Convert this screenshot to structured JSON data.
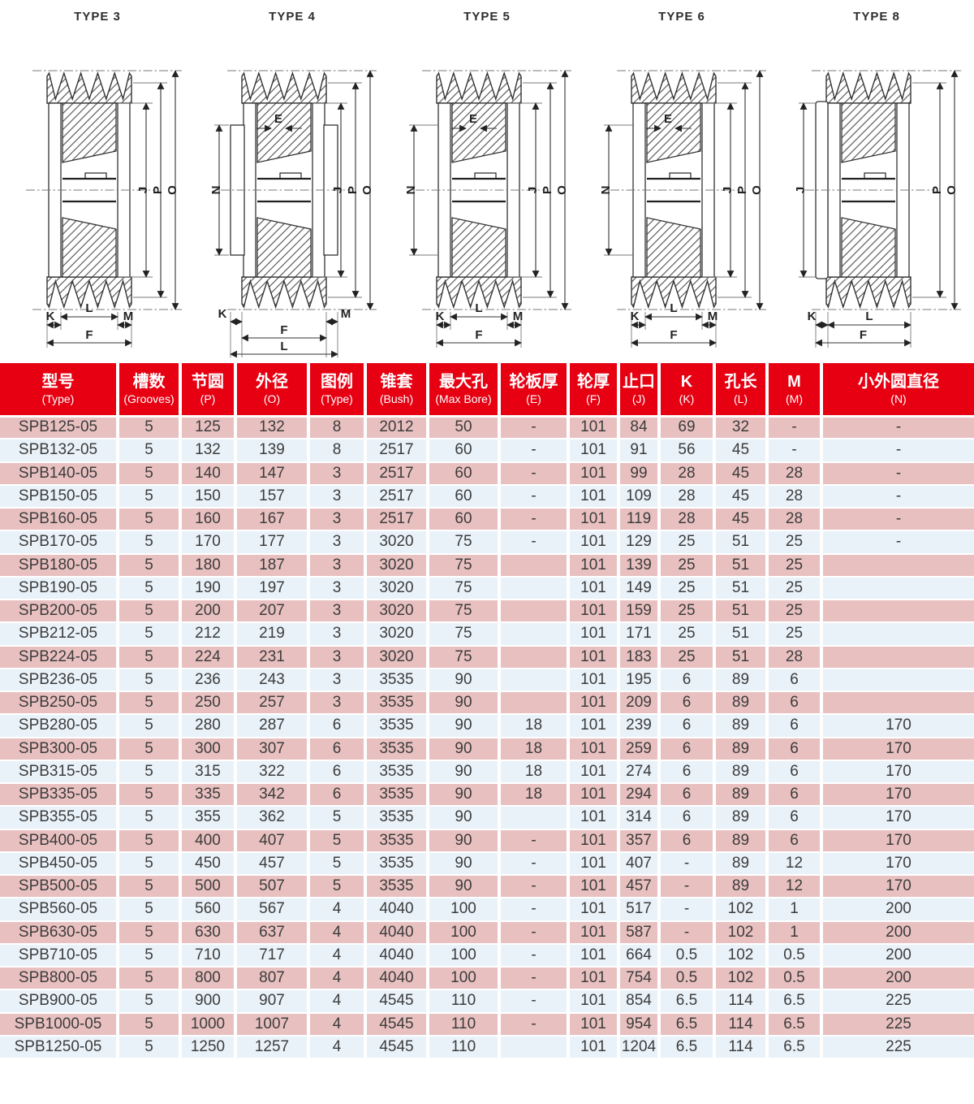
{
  "colors": {
    "header_red": "#e60012",
    "row_pink": "#e9c0c0",
    "row_blue": "#e9f2f9",
    "grid_white": "#ffffff",
    "text_dark": "#3c3c3c"
  },
  "diagrams": [
    {
      "title": "TYPE 3",
      "dims": {
        "right": [
          "J",
          "P",
          "O"
        ],
        "bottom": [
          "K",
          "L",
          "M",
          "F"
        ]
      }
    },
    {
      "title": "TYPE 4",
      "dims": {
        "top": "E",
        "left": "N",
        "right": [
          "J",
          "P",
          "O"
        ],
        "bottom": [
          "K",
          "F",
          "M",
          "L"
        ]
      }
    },
    {
      "title": "TYPE 5",
      "dims": {
        "top": "E",
        "left": "N",
        "right": [
          "J",
          "P",
          "O"
        ],
        "bottom": [
          "K",
          "L",
          "M",
          "F"
        ]
      }
    },
    {
      "title": "TYPE 6",
      "dims": {
        "top": "E",
        "left": "N",
        "right": [
          "J",
          "P",
          "O"
        ],
        "bottom": [
          "K",
          "L",
          "M",
          "F"
        ]
      }
    },
    {
      "title": "TYPE 8",
      "dims": {
        "left": "J",
        "right": [
          "P",
          "O"
        ],
        "bottom": [
          "K",
          "L",
          "F"
        ]
      }
    }
  ],
  "table": {
    "columns": [
      {
        "key": "model",
        "zh": "型号",
        "en": "(Type)"
      },
      {
        "key": "grooves",
        "zh": "槽数",
        "en": "(Grooves)"
      },
      {
        "key": "pitch",
        "zh": "节圆",
        "en": "(P)"
      },
      {
        "key": "outer",
        "zh": "外径",
        "en": "(O)"
      },
      {
        "key": "figure",
        "zh": "图例",
        "en": "(Type)"
      },
      {
        "key": "bush",
        "zh": "锥套",
        "en": "(Bush)"
      },
      {
        "key": "maxbore",
        "zh": "最大孔",
        "en": "(Max Bore)"
      },
      {
        "key": "e",
        "zh": "轮板厚",
        "en": "(E)"
      },
      {
        "key": "f",
        "zh": "轮厚",
        "en": "(F)"
      },
      {
        "key": "j",
        "zh": "止口",
        "en": "(J)"
      },
      {
        "key": "k",
        "zh": "K",
        "en": "(K)"
      },
      {
        "key": "l",
        "zh": "孔长",
        "en": "(L)"
      },
      {
        "key": "m",
        "zh": "M",
        "en": "(M)"
      },
      {
        "key": "n",
        "zh": "小外圆直径",
        "en": "(N)"
      }
    ],
    "rows": [
      [
        "SPB125-05",
        "5",
        "125",
        "132",
        "8",
        "2012",
        "50",
        "-",
        "101",
        "84",
        "69",
        "32",
        "-",
        "-"
      ],
      [
        "SPB132-05",
        "5",
        "132",
        "139",
        "8",
        "2517",
        "60",
        "-",
        "101",
        "91",
        "56",
        "45",
        "-",
        "-"
      ],
      [
        "SPB140-05",
        "5",
        "140",
        "147",
        "3",
        "2517",
        "60",
        "-",
        "101",
        "99",
        "28",
        "45",
        "28",
        "-"
      ],
      [
        "SPB150-05",
        "5",
        "150",
        "157",
        "3",
        "2517",
        "60",
        "-",
        "101",
        "109",
        "28",
        "45",
        "28",
        "-"
      ],
      [
        "SPB160-05",
        "5",
        "160",
        "167",
        "3",
        "2517",
        "60",
        "-",
        "101",
        "119",
        "28",
        "45",
        "28",
        "-"
      ],
      [
        "SPB170-05",
        "5",
        "170",
        "177",
        "3",
        "3020",
        "75",
        "-",
        "101",
        "129",
        "25",
        "51",
        "25",
        "-"
      ],
      [
        "SPB180-05",
        "5",
        "180",
        "187",
        "3",
        "3020",
        "75",
        "",
        "101",
        "139",
        "25",
        "51",
        "25",
        ""
      ],
      [
        "SPB190-05",
        "5",
        "190",
        "197",
        "3",
        "3020",
        "75",
        "",
        "101",
        "149",
        "25",
        "51",
        "25",
        ""
      ],
      [
        "SPB200-05",
        "5",
        "200",
        "207",
        "3",
        "3020",
        "75",
        "",
        "101",
        "159",
        "25",
        "51",
        "25",
        ""
      ],
      [
        "SPB212-05",
        "5",
        "212",
        "219",
        "3",
        "3020",
        "75",
        "",
        "101",
        "171",
        "25",
        "51",
        "25",
        ""
      ],
      [
        "SPB224-05",
        "5",
        "224",
        "231",
        "3",
        "3020",
        "75",
        "",
        "101",
        "183",
        "25",
        "51",
        "28",
        ""
      ],
      [
        "SPB236-05",
        "5",
        "236",
        "243",
        "3",
        "3535",
        "90",
        "",
        "101",
        "195",
        "6",
        "89",
        "6",
        ""
      ],
      [
        "SPB250-05",
        "5",
        "250",
        "257",
        "3",
        "3535",
        "90",
        "",
        "101",
        "209",
        "6",
        "89",
        "6",
        ""
      ],
      [
        "SPB280-05",
        "5",
        "280",
        "287",
        "6",
        "3535",
        "90",
        "18",
        "101",
        "239",
        "6",
        "89",
        "6",
        "170"
      ],
      [
        "SPB300-05",
        "5",
        "300",
        "307",
        "6",
        "3535",
        "90",
        "18",
        "101",
        "259",
        "6",
        "89",
        "6",
        "170"
      ],
      [
        "SPB315-05",
        "5",
        "315",
        "322",
        "6",
        "3535",
        "90",
        "18",
        "101",
        "274",
        "6",
        "89",
        "6",
        "170"
      ],
      [
        "SPB335-05",
        "5",
        "335",
        "342",
        "6",
        "3535",
        "90",
        "18",
        "101",
        "294",
        "6",
        "89",
        "6",
        "170"
      ],
      [
        "SPB355-05",
        "5",
        "355",
        "362",
        "5",
        "3535",
        "90",
        "",
        "101",
        "314",
        "6",
        "89",
        "6",
        "170"
      ],
      [
        "SPB400-05",
        "5",
        "400",
        "407",
        "5",
        "3535",
        "90",
        "-",
        "101",
        "357",
        "6",
        "89",
        "6",
        "170"
      ],
      [
        "SPB450-05",
        "5",
        "450",
        "457",
        "5",
        "3535",
        "90",
        "-",
        "101",
        "407",
        "-",
        "89",
        "12",
        "170"
      ],
      [
        "SPB500-05",
        "5",
        "500",
        "507",
        "5",
        "3535",
        "90",
        "-",
        "101",
        "457",
        "-",
        "89",
        "12",
        "170"
      ],
      [
        "SPB560-05",
        "5",
        "560",
        "567",
        "4",
        "4040",
        "100",
        "-",
        "101",
        "517",
        "-",
        "102",
        "1",
        "200"
      ],
      [
        "SPB630-05",
        "5",
        "630",
        "637",
        "4",
        "4040",
        "100",
        "-",
        "101",
        "587",
        "-",
        "102",
        "1",
        "200"
      ],
      [
        "SPB710-05",
        "5",
        "710",
        "717",
        "4",
        "4040",
        "100",
        "-",
        "101",
        "664",
        "0.5",
        "102",
        "0.5",
        "200"
      ],
      [
        "SPB800-05",
        "5",
        "800",
        "807",
        "4",
        "4040",
        "100",
        "-",
        "101",
        "754",
        "0.5",
        "102",
        "0.5",
        "200"
      ],
      [
        "SPB900-05",
        "5",
        "900",
        "907",
        "4",
        "4545",
        "110",
        "-",
        "101",
        "854",
        "6.5",
        "114",
        "6.5",
        "225"
      ],
      [
        "SPB1000-05",
        "5",
        "1000",
        "1007",
        "4",
        "4545",
        "110",
        "-",
        "101",
        "954",
        "6.5",
        "114",
        "6.5",
        "225"
      ],
      [
        "SPB1250-05",
        "5",
        "1250",
        "1257",
        "4",
        "4545",
        "110",
        "",
        "101",
        "1204",
        "6.5",
        "114",
        "6.5",
        "225"
      ]
    ]
  }
}
